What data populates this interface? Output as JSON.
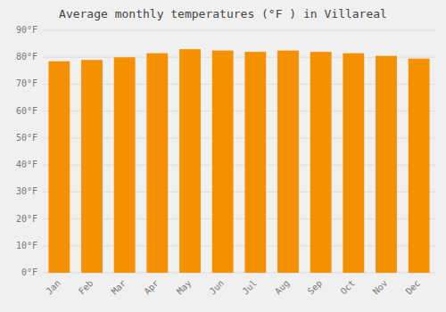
{
  "chart_data": {
    "type": "bar",
    "title": "Average monthly temperatures (°F ) in Villareal",
    "categories": [
      "Jan",
      "Feb",
      "Mar",
      "Apr",
      "May",
      "Jun",
      "Jul",
      "Aug",
      "Sep",
      "Oct",
      "Nov",
      "Dec"
    ],
    "values": [
      78.5,
      79.0,
      80.0,
      81.5,
      83.0,
      82.5,
      82.0,
      82.5,
      82.0,
      81.5,
      80.5,
      79.5
    ],
    "color": "#F59000",
    "ylim": [
      0,
      90
    ],
    "yticks": [
      {
        "value": 0,
        "label": "0°F"
      },
      {
        "value": 10,
        "label": "10°F"
      },
      {
        "value": 20,
        "label": "20°F"
      },
      {
        "value": 30,
        "label": "30°F"
      },
      {
        "value": 40,
        "label": "40°F"
      },
      {
        "value": 50,
        "label": "50°F"
      },
      {
        "value": 60,
        "label": "60°F"
      },
      {
        "value": 70,
        "label": "70°F"
      },
      {
        "value": 80,
        "label": "80°F"
      },
      {
        "value": 90,
        "label": "90°F"
      }
    ],
    "grid": true
  }
}
